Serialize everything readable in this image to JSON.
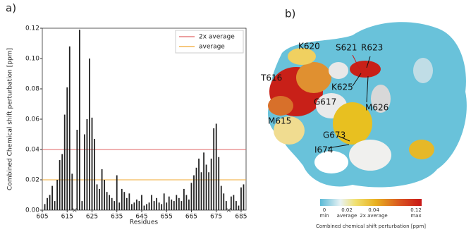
{
  "chart_data": {
    "type": "bar",
    "y_label": "Combined Chemical shift perturbation [ppm]",
    "x_label": "Residues",
    "x": [
      606,
      607,
      608,
      609,
      610,
      611,
      612,
      613,
      614,
      615,
      616,
      617,
      618,
      619,
      620,
      621,
      622,
      623,
      624,
      625,
      626,
      627,
      628,
      629,
      630,
      631,
      632,
      633,
      634,
      635,
      636,
      637,
      638,
      639,
      640,
      641,
      642,
      643,
      644,
      645,
      646,
      647,
      648,
      649,
      650,
      651,
      652,
      653,
      654,
      655,
      656,
      657,
      658,
      659,
      660,
      661,
      662,
      663,
      664,
      665,
      666,
      667,
      668,
      669,
      670,
      671,
      672,
      673,
      674,
      675,
      676,
      677,
      678,
      679,
      680,
      681,
      682,
      683,
      684,
      685,
      686
    ],
    "values": [
      0.004,
      0.008,
      0.01,
      0.016,
      0.006,
      0.02,
      0.033,
      0.037,
      0.063,
      0.081,
      0.108,
      0.024,
      null,
      0.053,
      0.119,
      0.006,
      0.05,
      0.06,
      0.1,
      0.061,
      0.047,
      0.017,
      0.014,
      0.027,
      0.02,
      0.012,
      0.01,
      0.008,
      0.006,
      0.023,
      0.005,
      0.014,
      0.012,
      0.008,
      0.011,
      0.004,
      0.005,
      0.007,
      0.006,
      0.01,
      0.003,
      0.004,
      0.005,
      0.01,
      0.006,
      0.008,
      0.005,
      0.004,
      0.011,
      0.005,
      0.009,
      0.007,
      0.006,
      0.01,
      0.008,
      0.006,
      0.014,
      0.01,
      0.007,
      0.018,
      0.023,
      0.028,
      0.034,
      0.025,
      0.038,
      0.03,
      0.025,
      0.034,
      0.054,
      0.057,
      0.035,
      0.016,
      0.011,
      0.006,
      null,
      0.009,
      0.01,
      0.006,
      0.003,
      0.015,
      0.017
    ],
    "color": "#222222",
    "xlim": [
      605,
      687
    ],
    "xticks": [
      605,
      615,
      625,
      635,
      645,
      655,
      665,
      675,
      685
    ],
    "ylim": [
      0,
      0.12
    ],
    "yticks": [
      {
        "value": 0,
        "label": "0.00"
      },
      {
        "value": 0.02,
        "label": "0.02"
      },
      {
        "value": 0.04,
        "label": "0.04"
      },
      {
        "value": 0.06,
        "label": "0.06"
      },
      {
        "value": 0.08,
        "label": "0.08"
      },
      {
        "value": 0.1,
        "label": "0.10"
      },
      {
        "value": 0.12,
        "label": "0.12"
      }
    ],
    "reference_lines": [
      {
        "name": "2x average",
        "value": 0.04,
        "color": "#e06666"
      },
      {
        "name": "average",
        "value": 0.02,
        "color": "#f0a830"
      }
    ],
    "legend": "upper right"
  },
  "panel_labels": [
    "a)",
    "b)"
  ],
  "structure": {
    "residue_labels": [
      "K620",
      "S621",
      "R623",
      "T616",
      "K625",
      "G617",
      "M626",
      "M615",
      "G673",
      "I674"
    ],
    "colorbar": {
      "ticks": [
        {
          "label": "0",
          "caption": "min"
        },
        {
          "label": "0.02",
          "caption": "average"
        },
        {
          "label": "0.04",
          "caption": "2x average"
        },
        {
          "label": "0.12",
          "caption": "max"
        }
      ],
      "title": "Combined chemical shift perturbation [ppm]"
    }
  }
}
